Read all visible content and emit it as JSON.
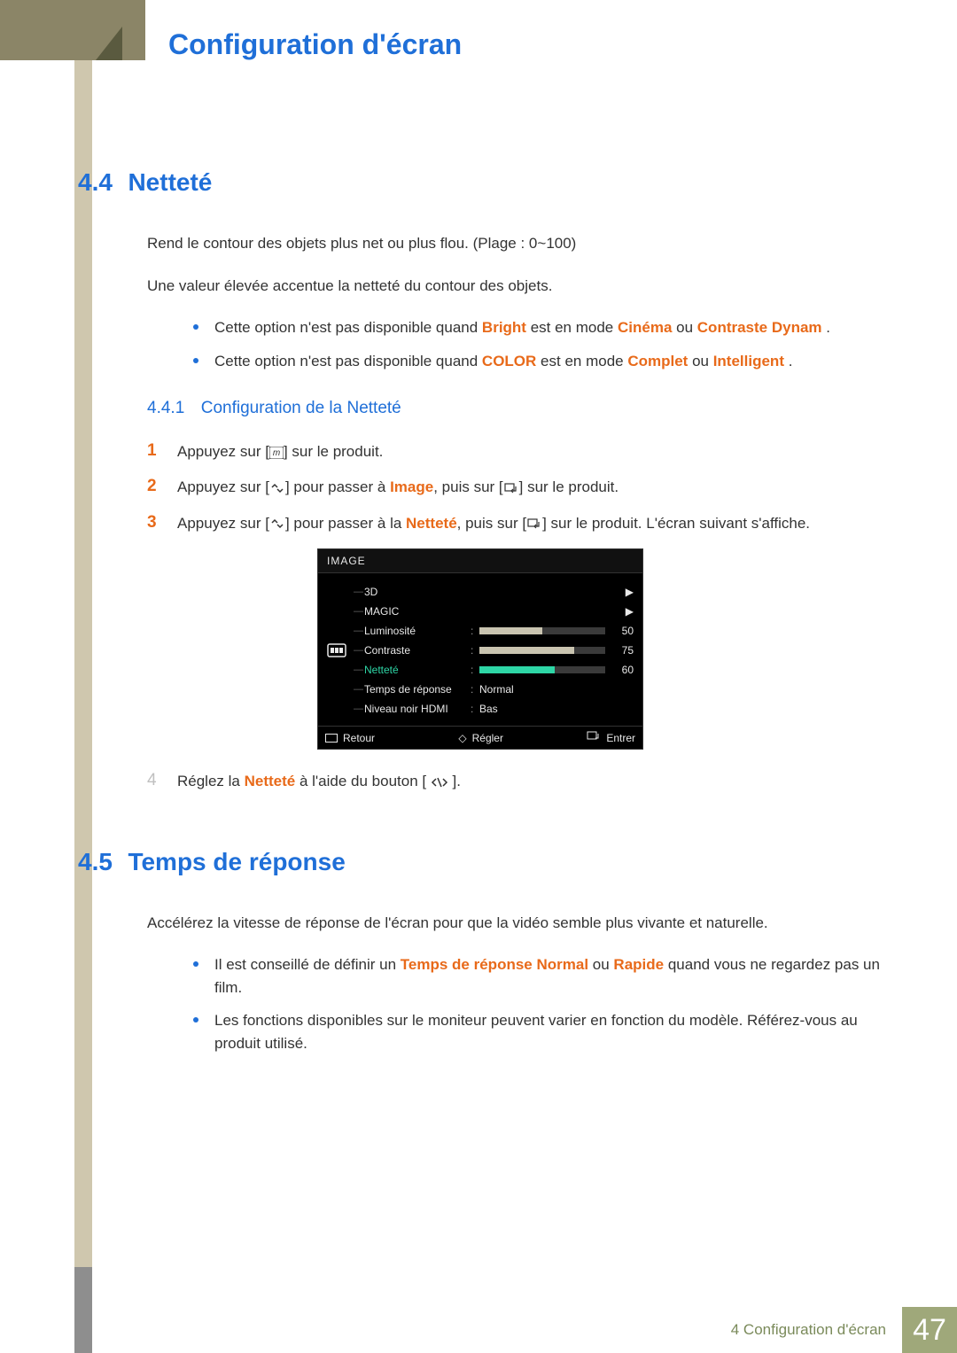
{
  "header": {
    "chapter_title": "Configuration d'écran"
  },
  "section44": {
    "num": "4.4",
    "title": "Netteté",
    "para1": "Rend le contour des objets plus net ou plus flou. (Plage : 0~100)",
    "para2": "Une valeur élevée accentue la netteté du contour des objets.",
    "bullets": [
      {
        "pre": "Cette option n'est pas disponible quand ",
        "hl1": "Bright",
        "mid": " est en mode ",
        "hl2": "Cinéma",
        "mid2": " ou ",
        "hl3": "Contraste Dynam",
        "post": "."
      },
      {
        "pre": "Cette option n'est pas disponible quand ",
        "hl1": "COLOR",
        "mid": " est en mode ",
        "hl2": "Complet",
        "mid2": " ou ",
        "hl3": "Intelligent",
        "post": "."
      }
    ],
    "sub": {
      "num": "4.4.1",
      "title": "Configuration de la Netteté",
      "steps": [
        {
          "n": "1",
          "pre": "Appuyez sur [",
          "icon": "m",
          "post": "] sur le produit."
        },
        {
          "n": "2",
          "pre": "Appuyez sur [",
          "icon": "updown",
          "mid1": "] pour passer à ",
          "hl": "Image",
          "mid2": ", puis sur [",
          "icon2": "enter",
          "post": "] sur le produit."
        },
        {
          "n": "3",
          "pre": "Appuyez sur [",
          "icon": "updown",
          "mid1": "] pour passer à la ",
          "hl": "Netteté",
          "mid2": ", puis sur [",
          "icon2": "enter",
          "post": "] sur le produit. L'écran suivant s'affiche."
        },
        {
          "n": "4",
          "pre": "Réglez la ",
          "hl": "Netteté",
          "mid1": " à l'aide du bouton [ ",
          "icon": "leftright",
          "post": " ]."
        }
      ]
    }
  },
  "osd": {
    "title": "IMAGE",
    "rows": [
      {
        "label": "3D",
        "type": "arrow"
      },
      {
        "label": "MAGIC",
        "type": "arrow"
      },
      {
        "label": "Luminosité",
        "type": "bar",
        "value": 50,
        "display": "50"
      },
      {
        "label": "Contraste",
        "type": "bar",
        "value": 75,
        "display": "75"
      },
      {
        "label": "Netteté",
        "type": "bar",
        "value": 60,
        "display": "60",
        "selected": true
      },
      {
        "label": "Temps de réponse",
        "type": "text",
        "text": "Normal"
      },
      {
        "label": "Niveau noir HDMI",
        "type": "text",
        "text": "Bas"
      }
    ],
    "foot": {
      "back": "Retour",
      "adjust": "Régler",
      "enter": "Entrer"
    }
  },
  "section45": {
    "num": "4.5",
    "title": "Temps de réponse",
    "para1": "Accélérez la vitesse de réponse de l'écran pour que la vidéo semble plus vivante et naturelle.",
    "bullets": [
      {
        "pre": "Il est conseillé de définir un ",
        "hl1": "Temps de réponse Normal",
        "mid": " ou ",
        "hl2": "Rapide",
        "post": " quand vous ne regardez pas un film."
      },
      {
        "plain": "Les fonctions disponibles sur le moniteur peuvent varier en fonction du modèle. Référez-vous au produit utilisé."
      }
    ]
  },
  "footer": {
    "text": "4 Configuration d'écran",
    "page": "47"
  },
  "colors": {
    "blue": "#1f6fd8",
    "orange": "#e86a1a",
    "band": "#8b8567",
    "side": "#cfc7ae",
    "footpage": "#9fa87a"
  }
}
